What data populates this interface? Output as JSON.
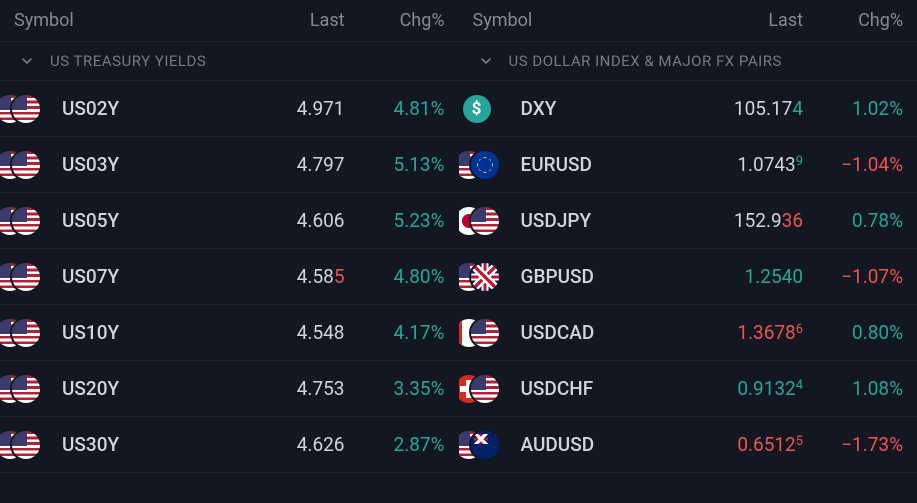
{
  "columns": {
    "symbol": "Symbol",
    "last": "Last",
    "chg": "Chg%"
  },
  "colors": {
    "positive": "#26a69a",
    "negative": "#ef5350",
    "text": "#d1d4dc",
    "muted": "#787b86",
    "bg_panel": "#131722",
    "row_border": "#1e222d"
  },
  "panels": [
    {
      "section_label": "US TREASURY YIELDS",
      "rows": [
        {
          "symbol": "US02Y",
          "flag_back": "us",
          "flag_front": "us",
          "last_main": "4.971",
          "last_tick": "",
          "tick_dir": "",
          "chg": "4.81%",
          "chg_dir": "pos"
        },
        {
          "symbol": "US03Y",
          "flag_back": "us",
          "flag_front": "us",
          "last_main": "4.797",
          "last_tick": "",
          "tick_dir": "",
          "chg": "5.13%",
          "chg_dir": "pos"
        },
        {
          "symbol": "US05Y",
          "flag_back": "us",
          "flag_front": "us",
          "last_main": "4.606",
          "last_tick": "",
          "tick_dir": "",
          "chg": "5.23%",
          "chg_dir": "pos"
        },
        {
          "symbol": "US07Y",
          "flag_back": "us",
          "flag_front": "us",
          "last_main": "4.58",
          "last_tick": "5",
          "tick_dir": "down",
          "chg": "4.80%",
          "chg_dir": "pos"
        },
        {
          "symbol": "US10Y",
          "flag_back": "us",
          "flag_front": "us",
          "last_main": "4.548",
          "last_tick": "",
          "tick_dir": "",
          "chg": "4.17%",
          "chg_dir": "pos"
        },
        {
          "symbol": "US20Y",
          "flag_back": "us",
          "flag_front": "us",
          "last_main": "4.753",
          "last_tick": "",
          "tick_dir": "",
          "chg": "3.35%",
          "chg_dir": "pos"
        },
        {
          "symbol": "US30Y",
          "flag_back": "us",
          "flag_front": "us",
          "last_main": "4.626",
          "last_tick": "",
          "tick_dir": "",
          "chg": "2.87%",
          "chg_dir": "pos"
        }
      ]
    },
    {
      "section_label": "US DOLLAR INDEX & MAJOR FX PAIRS",
      "rows": [
        {
          "symbol": "DXY",
          "flag_back": "",
          "flag_front": "dxy",
          "flag_glyph": "$",
          "last_main": "105.17",
          "last_tick": "4",
          "tick_dir": "up",
          "chg": "1.02%",
          "chg_dir": "pos"
        },
        {
          "symbol": "EURUSD",
          "flag_back": "us",
          "flag_front": "eu",
          "last_main": "1.0743",
          "last_tick": "9",
          "tick_dir": "up",
          "sup": true,
          "chg": "−1.04%",
          "chg_dir": "neg"
        },
        {
          "symbol": "USDJPY",
          "flag_back": "jp",
          "flag_front": "us",
          "last_main": "152.9",
          "last_tick": "36",
          "tick_dir": "down",
          "chg": "0.78%",
          "chg_dir": "pos"
        },
        {
          "symbol": "GBPUSD",
          "flag_back": "us",
          "flag_front": "gb",
          "last_main": "1.254",
          "last_tick": "0",
          "tick_dir": "up",
          "last_color": "pos",
          "chg": "−1.07%",
          "chg_dir": "neg"
        },
        {
          "symbol": "USDCAD",
          "flag_back": "ca",
          "flag_front": "us",
          "last_main": "1.3678",
          "last_tick": "6",
          "tick_dir": "down",
          "sup": true,
          "last_color": "neg",
          "chg": "0.80%",
          "chg_dir": "pos"
        },
        {
          "symbol": "USDCHF",
          "flag_back": "ch",
          "flag_front": "us",
          "last_main": "0.9132",
          "last_tick": "4",
          "tick_dir": "up",
          "sup": true,
          "last_color": "pos",
          "chg": "1.08%",
          "chg_dir": "pos"
        },
        {
          "symbol": "AUDUSD",
          "flag_back": "us",
          "flag_front": "au",
          "last_main": "0.6512",
          "last_tick": "5",
          "tick_dir": "down",
          "sup": true,
          "last_color": "neg",
          "chg": "−1.73%",
          "chg_dir": "neg"
        }
      ]
    }
  ]
}
